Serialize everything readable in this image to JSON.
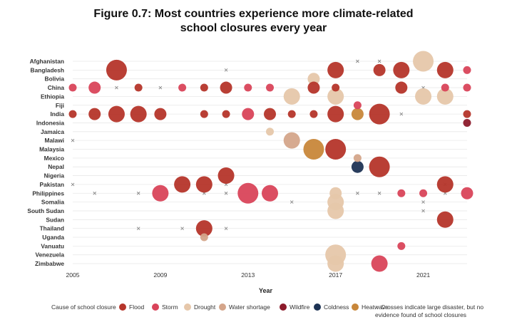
{
  "chart_data": {
    "type": "scatter",
    "title_line1": "Figure 0.7: Most countries experience more climate-related",
    "title_line2": "school closures every year",
    "xlabel": "Year",
    "x_ticks": [
      2005,
      2009,
      2013,
      2017,
      2021
    ],
    "xlim": [
      2005,
      2023
    ],
    "countries": [
      "Afghanistan",
      "Bangladesh",
      "Bolivia",
      "China",
      "Ethiopia",
      "Fiji",
      "India",
      "Indonesia",
      "Jamaica",
      "Malawi",
      "Malaysia",
      "Mexico",
      "Nepal",
      "Nigeria",
      "Pakistan",
      "Philippines",
      "Somalia",
      "South Sudan",
      "Sudan",
      "Thailand",
      "Uganda",
      "Vanuatu",
      "Venezuela",
      "Zimbabwe"
    ],
    "causes": [
      {
        "key": "flood",
        "label": "Flood",
        "color": "#b5352a"
      },
      {
        "key": "storm",
        "label": "Storm",
        "color": "#d9445a"
      },
      {
        "key": "drought",
        "label": "Drought",
        "color": "#e6c7aa"
      },
      {
        "key": "water",
        "label": "Water shortage",
        "color": "#d4a58a"
      },
      {
        "key": "wildfire",
        "label": "Wildfire",
        "color": "#8c1a2b"
      },
      {
        "key": "coldness",
        "label": "Coldness",
        "color": "#1d3354"
      },
      {
        "key": "heatwave",
        "label": "Heatwave",
        "color": "#c8873a"
      }
    ],
    "legend_lead": "Cause of school closure",
    "cross_note": "Crosses indicate large disaster, but no evidence found of school closures",
    "points": [
      {
        "country": "Afghanistan",
        "year": 2021,
        "cause": "drought",
        "size": 3
      },
      {
        "country": "Bangladesh",
        "year": 2007,
        "cause": "flood",
        "size": 3
      },
      {
        "country": "Bangladesh",
        "year": 2017,
        "cause": "flood",
        "size": 2
      },
      {
        "country": "Bangladesh",
        "year": 2019,
        "cause": "flood",
        "size": 1
      },
      {
        "country": "Bangladesh",
        "year": 2020,
        "cause": "flood",
        "size": 2
      },
      {
        "country": "Bangladesh",
        "year": 2022,
        "cause": "flood",
        "size": 2
      },
      {
        "country": "Bangladesh",
        "year": 2023,
        "cause": "storm",
        "size": 0
      },
      {
        "country": "Bolivia",
        "year": 2016,
        "cause": "drought",
        "size": 1
      },
      {
        "country": "China",
        "year": 2005,
        "cause": "storm",
        "size": 0
      },
      {
        "country": "China",
        "year": 2006,
        "cause": "storm",
        "size": 1
      },
      {
        "country": "China",
        "year": 2008,
        "cause": "flood",
        "size": 0
      },
      {
        "country": "China",
        "year": 2010,
        "cause": "storm",
        "size": 0
      },
      {
        "country": "China",
        "year": 2011,
        "cause": "flood",
        "size": 0
      },
      {
        "country": "China",
        "year": 2012,
        "cause": "flood",
        "size": 1
      },
      {
        "country": "China",
        "year": 2013,
        "cause": "storm",
        "size": 0
      },
      {
        "country": "China",
        "year": 2014,
        "cause": "storm",
        "size": 0
      },
      {
        "country": "China",
        "year": 2016,
        "cause": "flood",
        "size": 1
      },
      {
        "country": "China",
        "year": 2017,
        "cause": "flood",
        "size": 0
      },
      {
        "country": "China",
        "year": 2020,
        "cause": "flood",
        "size": 1
      },
      {
        "country": "China",
        "year": 2022,
        "cause": "storm",
        "size": 0
      },
      {
        "country": "China",
        "year": 2023,
        "cause": "storm",
        "size": 0
      },
      {
        "country": "Ethiopia",
        "year": 2015,
        "cause": "drought",
        "size": 2
      },
      {
        "country": "Ethiopia",
        "year": 2017,
        "cause": "drought",
        "size": 2
      },
      {
        "country": "Ethiopia",
        "year": 2021,
        "cause": "drought",
        "size": 2
      },
      {
        "country": "Ethiopia",
        "year": 2022,
        "cause": "drought",
        "size": 2
      },
      {
        "country": "Fiji",
        "year": 2018,
        "cause": "storm",
        "size": 0
      },
      {
        "country": "India",
        "year": 2005,
        "cause": "flood",
        "size": 0
      },
      {
        "country": "India",
        "year": 2006,
        "cause": "flood",
        "size": 1
      },
      {
        "country": "India",
        "year": 2007,
        "cause": "flood",
        "size": 2
      },
      {
        "country": "India",
        "year": 2008,
        "cause": "flood",
        "size": 2
      },
      {
        "country": "India",
        "year": 2009,
        "cause": "flood",
        "size": 1
      },
      {
        "country": "India",
        "year": 2011,
        "cause": "flood",
        "size": 0
      },
      {
        "country": "India",
        "year": 2012,
        "cause": "flood",
        "size": 0
      },
      {
        "country": "India",
        "year": 2013,
        "cause": "storm",
        "size": 1
      },
      {
        "country": "India",
        "year": 2014,
        "cause": "flood",
        "size": 1
      },
      {
        "country": "India",
        "year": 2015,
        "cause": "flood",
        "size": 0
      },
      {
        "country": "India",
        "year": 2016,
        "cause": "flood",
        "size": 0
      },
      {
        "country": "India",
        "year": 2017,
        "cause": "flood",
        "size": 2
      },
      {
        "country": "India",
        "year": 2018,
        "cause": "heatwave",
        "size": 1
      },
      {
        "country": "India",
        "year": 2019,
        "cause": "flood",
        "size": 3
      },
      {
        "country": "India",
        "year": 2023,
        "cause": "flood",
        "size": 0
      },
      {
        "country": "Indonesia",
        "year": 2023,
        "cause": "wildfire",
        "size": 0
      },
      {
        "country": "Jamaica",
        "year": 2014,
        "cause": "drought",
        "size": 0
      },
      {
        "country": "Malawi",
        "year": 2015,
        "cause": "water",
        "size": 2
      },
      {
        "country": "Malaysia",
        "year": 2016,
        "cause": "heatwave",
        "size": 3
      },
      {
        "country": "Malaysia",
        "year": 2017,
        "cause": "flood",
        "size": 3
      },
      {
        "country": "Mexico",
        "year": 2018,
        "cause": "water",
        "size": 0
      },
      {
        "country": "Nepal",
        "year": 2018,
        "cause": "coldness",
        "size": 1
      },
      {
        "country": "Nepal",
        "year": 2019,
        "cause": "flood",
        "size": 3
      },
      {
        "country": "Nigeria",
        "year": 2012,
        "cause": "flood",
        "size": 2
      },
      {
        "country": "Pakistan",
        "year": 2010,
        "cause": "flood",
        "size": 2
      },
      {
        "country": "Pakistan",
        "year": 2011,
        "cause": "flood",
        "size": 2
      },
      {
        "country": "Pakistan",
        "year": 2022,
        "cause": "flood",
        "size": 2
      },
      {
        "country": "Philippines",
        "year": 2009,
        "cause": "storm",
        "size": 2
      },
      {
        "country": "Philippines",
        "year": 2013,
        "cause": "storm",
        "size": 3
      },
      {
        "country": "Philippines",
        "year": 2014,
        "cause": "storm",
        "size": 2
      },
      {
        "country": "Philippines",
        "year": 2017,
        "cause": "drought",
        "size": 1
      },
      {
        "country": "Philippines",
        "year": 2020,
        "cause": "storm",
        "size": 0
      },
      {
        "country": "Philippines",
        "year": 2021,
        "cause": "storm",
        "size": 0
      },
      {
        "country": "Philippines",
        "year": 2023,
        "cause": "storm",
        "size": 1
      },
      {
        "country": "Somalia",
        "year": 2017,
        "cause": "drought",
        "size": 2
      },
      {
        "country": "South Sudan",
        "year": 2017,
        "cause": "drought",
        "size": 2
      },
      {
        "country": "Sudan",
        "year": 2022,
        "cause": "flood",
        "size": 2
      },
      {
        "country": "Thailand",
        "year": 2011,
        "cause": "flood",
        "size": 2
      },
      {
        "country": "Uganda",
        "year": 2011,
        "cause": "water",
        "size": 0
      },
      {
        "country": "Vanuatu",
        "year": 2020,
        "cause": "storm",
        "size": 0
      },
      {
        "country": "Venezuela",
        "year": 2017,
        "cause": "drought",
        "size": 3
      },
      {
        "country": "Zimbabwe",
        "year": 2017,
        "cause": "drought",
        "size": 2
      },
      {
        "country": "Zimbabwe",
        "year": 2019,
        "cause": "storm",
        "size": 2
      }
    ],
    "crosses": [
      {
        "country": "Afghanistan",
        "year": 2018
      },
      {
        "country": "Afghanistan",
        "year": 2019
      },
      {
        "country": "Bangladesh",
        "year": 2012
      },
      {
        "country": "China",
        "year": 2007
      },
      {
        "country": "China",
        "year": 2009
      },
      {
        "country": "China",
        "year": 2021
      },
      {
        "country": "India",
        "year": 2020
      },
      {
        "country": "Malawi",
        "year": 2005
      },
      {
        "country": "Pakistan",
        "year": 2005
      },
      {
        "country": "Pakistan",
        "year": 2012
      },
      {
        "country": "Pakistan",
        "year": 2022
      },
      {
        "country": "Philippines",
        "year": 2006
      },
      {
        "country": "Philippines",
        "year": 2008
      },
      {
        "country": "Philippines",
        "year": 2011
      },
      {
        "country": "Philippines",
        "year": 2012
      },
      {
        "country": "Philippines",
        "year": 2018
      },
      {
        "country": "Philippines",
        "year": 2019
      },
      {
        "country": "Philippines",
        "year": 2022
      },
      {
        "country": "Somalia",
        "year": 2015
      },
      {
        "country": "Somalia",
        "year": 2021
      },
      {
        "country": "South Sudan",
        "year": 2021
      },
      {
        "country": "Thailand",
        "year": 2008
      },
      {
        "country": "Thailand",
        "year": 2010
      },
      {
        "country": "Thailand",
        "year": 2012
      }
    ]
  }
}
